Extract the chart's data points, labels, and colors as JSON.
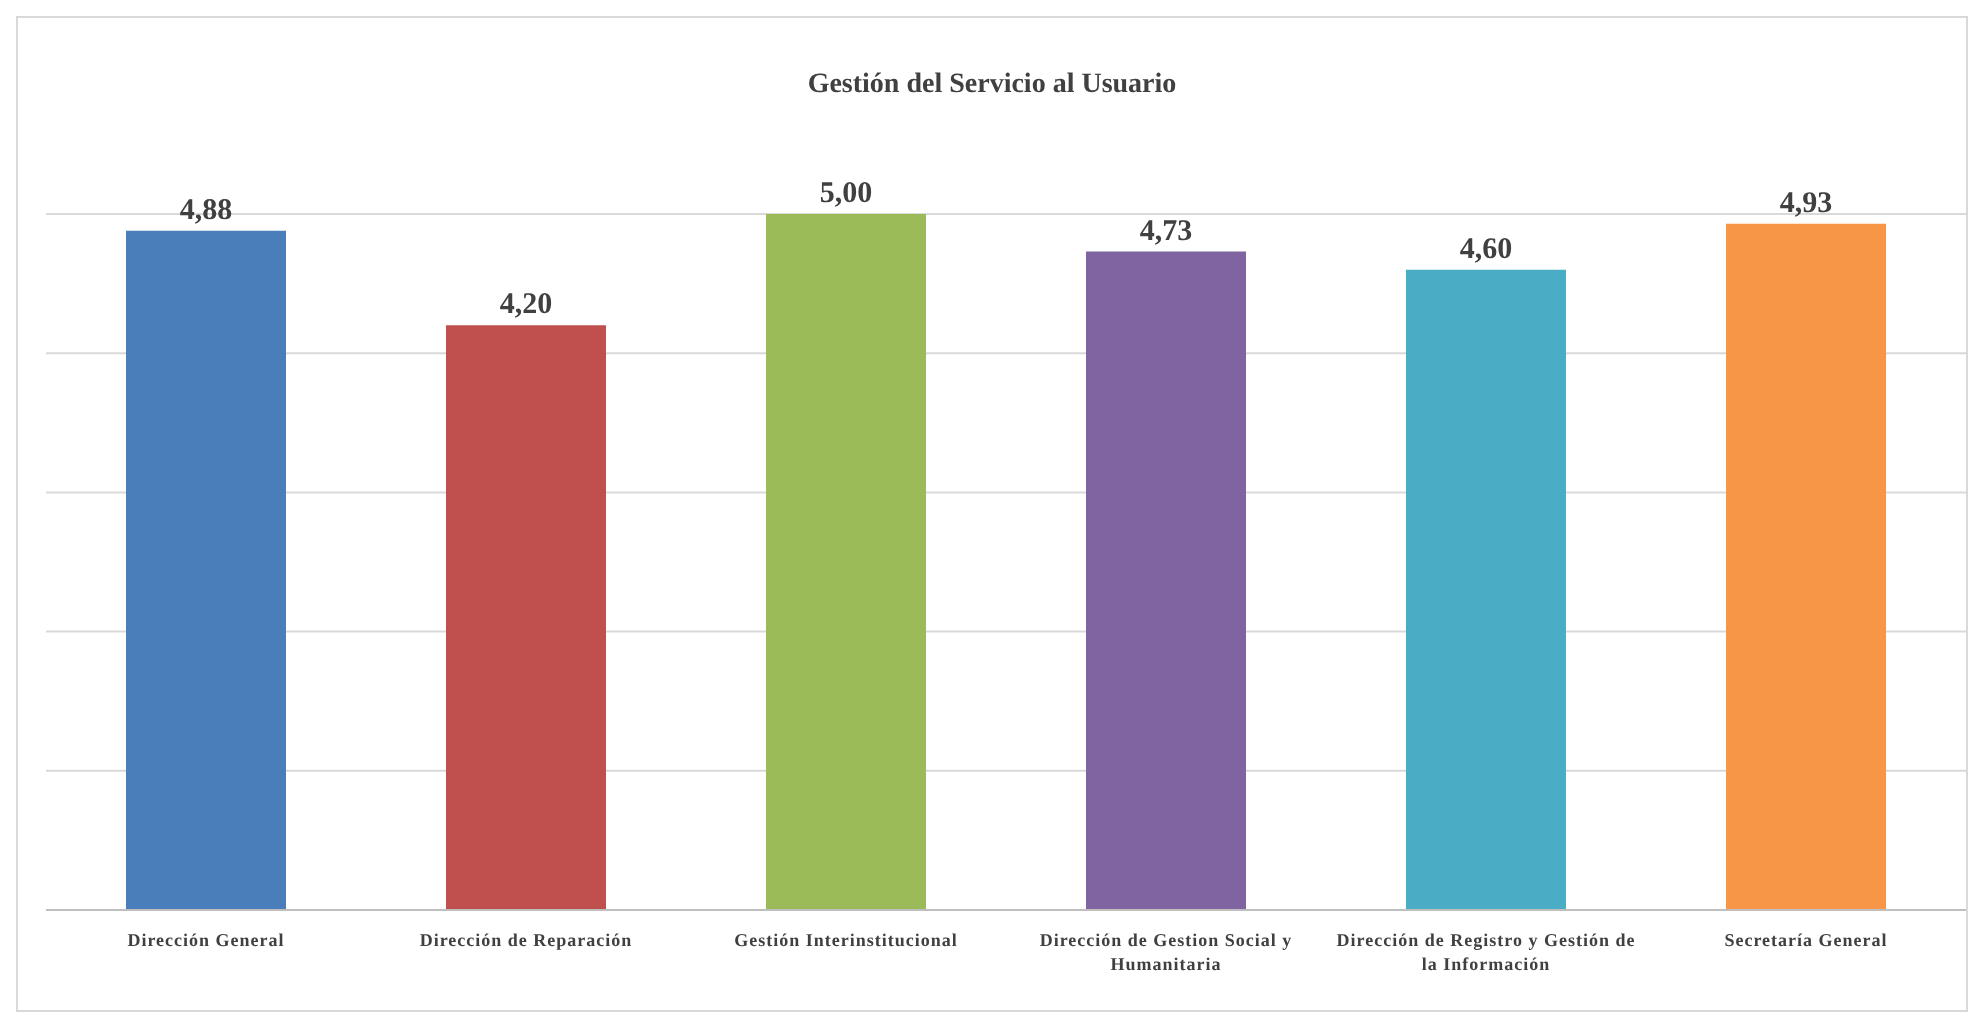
{
  "chart_data": {
    "type": "bar",
    "title": "Gestión del Servicio al Usuario",
    "categories": [
      "Dirección General",
      "Dirección de Reparación",
      "Gestión Interinstitucional",
      "Dirección de Gestion Social y Humanitaria",
      "Dirección de Registro y Gestión de la Información",
      "Secretaría General"
    ],
    "values": [
      4.88,
      4.2,
      5.0,
      4.73,
      4.6,
      4.93
    ],
    "colors": [
      "#4a7ebb",
      "#c0504d",
      "#9bbb59",
      "#8064a2",
      "#4bacc6",
      "#f79646"
    ],
    "value_labels": [
      "4,88",
      "4,20",
      "5,00",
      "4,73",
      "4,60",
      "4,93"
    ],
    "ylim": [
      0,
      5
    ],
    "grid": true,
    "tick_labels": "x"
  }
}
